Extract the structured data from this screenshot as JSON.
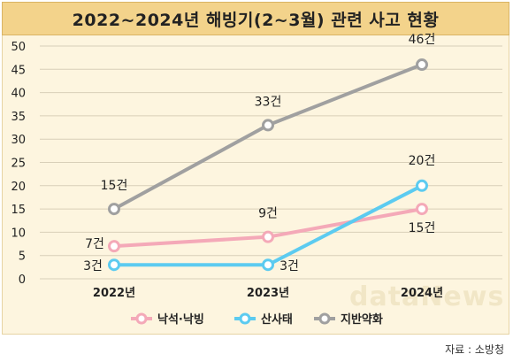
{
  "chart_data": {
    "type": "line",
    "title": "2022~2024년 해빙기(2~3월) 관련 사고 현황",
    "categories": [
      "2022년",
      "2023년",
      "2024년"
    ],
    "ylim": [
      0,
      50
    ],
    "yticks": [
      0,
      5,
      10,
      15,
      20,
      25,
      30,
      35,
      40,
      45,
      50
    ],
    "grid": true,
    "legend_position": "bottom",
    "series": [
      {
        "name": "낙석·낙빙",
        "values": [
          7,
          9,
          15
        ],
        "labels": [
          "7건",
          "9건",
          "15건"
        ],
        "color": "#f4a9b8"
      },
      {
        "name": "산사태",
        "values": [
          3,
          3,
          20
        ],
        "labels": [
          "3건",
          "3건",
          "20건"
        ],
        "color": "#5ccbf0"
      },
      {
        "name": "지반약화",
        "values": [
          15,
          33,
          46
        ],
        "labels": [
          "15건",
          "33건",
          "46건"
        ],
        "color": "#a0a0a0"
      }
    ]
  },
  "source": "자료 : 소방청",
  "watermark": "dataNews"
}
